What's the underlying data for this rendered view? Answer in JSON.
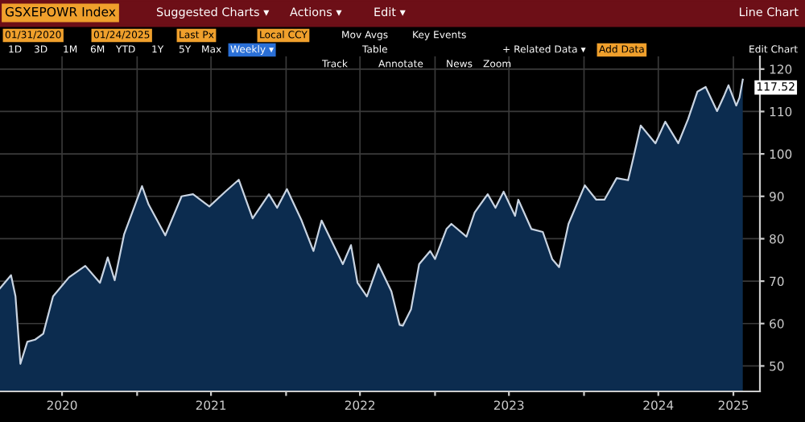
{
  "chart_data": {
    "type": "area",
    "title": "GSXEPOWR Index",
    "annotations": [
      "Suggested Charts ▾",
      "Actions ▾",
      "Edit ▾",
      "Line Chart",
      "01/31/2020",
      "01/24/2025",
      "Last Px",
      "Local CCY",
      "Mov Avgs",
      "Key Events",
      "1D",
      "3D",
      "1M",
      "6M",
      "YTD",
      "1Y",
      "5Y",
      "Max",
      "Weekly ▾",
      "Table",
      "+ Related Data ▾",
      "Add Data",
      "Edit Chart",
      "Track",
      "Annotate",
      "News",
      "Zoom",
      {
        "text": "117.52",
        "x": "2025-01-24",
        "y": 117.52
      }
    ],
    "x": [
      "2020-01-31",
      "2020-02-27",
      "2020-03-09",
      "2020-03-21",
      "2020-04-07",
      "2020-04-26",
      "2020-05-16",
      "2020-06-09",
      "2020-07-18",
      "2020-08-27",
      "2020-10-02",
      "2020-10-21",
      "2020-11-07",
      "2020-11-30",
      "2021-01-13",
      "2021-01-29",
      "2021-03-11",
      "2021-04-20",
      "2021-05-18",
      "2021-06-27",
      "2021-08-05",
      "2021-09-07",
      "2021-10-11",
      "2021-11-20",
      "2021-12-10",
      "2022-01-03",
      "2022-02-08",
      "2022-03-09",
      "2022-03-29",
      "2022-05-20",
      "2022-06-09",
      "2022-06-25",
      "2022-07-18",
      "2022-08-15",
      "2022-09-16",
      "2022-10-06",
      "2022-10-14",
      "2022-11-03",
      "2022-11-23",
      "2022-12-20",
      "2023-01-01",
      "2023-01-29",
      "2023-02-10",
      "2023-03-19",
      "2023-04-08",
      "2023-05-10",
      "2023-05-29",
      "2023-06-18",
      "2023-07-16",
      "2023-07-24",
      "2023-08-25",
      "2023-09-22",
      "2023-10-15",
      "2023-11-01",
      "2023-11-24",
      "2024-01-03",
      "2024-01-31",
      "2024-02-20",
      "2024-03-21",
      "2024-04-18",
      "2024-04-30",
      "2024-05-19",
      "2024-06-24",
      "2024-07-18",
      "2024-08-19",
      "2024-09-12",
      "2024-10-05",
      "2024-10-25",
      "2024-11-22",
      "2024-12-10",
      "2024-12-20",
      "2025-01-08",
      "2025-01-16",
      "2025-01-24"
    ],
    "series": [
      {
        "color": "#0c2c4f",
        "values": [
          68.3,
          71.4,
          66.4,
          50.5,
          55.7,
          56.2,
          57.6,
          66.4,
          70.9,
          73.6,
          69.6,
          75.6,
          70.2,
          81,
          92.4,
          88.1,
          80.8,
          90,
          90.5,
          87.6,
          91.1,
          93.9,
          84.8,
          90.5,
          87.3,
          91.7,
          84.3,
          77.1,
          84.3,
          74,
          78.5,
          69.6,
          66.4,
          74,
          67.6,
          59.7,
          59.5,
          63.3,
          74,
          77.1,
          75.2,
          82.3,
          83.5,
          80.5,
          86.2,
          90.5,
          87.3,
          91.1,
          85.4,
          89.2,
          82.3,
          81.6,
          75.2,
          73.3,
          83.5,
          92.6,
          89.2,
          89.2,
          94.3,
          93.8,
          98.7,
          106.7,
          102.5,
          107.6,
          102.5,
          108.2,
          114.7,
          115.8,
          110.1,
          113.9,
          116.2,
          111.4,
          113.3,
          117.52
        ]
      }
    ],
    "xlim": [
      "2020-01-31",
      "2025-03-07"
    ],
    "xticks": [
      {
        "value": "2020-07-01",
        "label": "2020"
      },
      {
        "value": "2021-01-01",
        "label": null
      },
      {
        "value": "2021-07-01",
        "label": "2021"
      },
      {
        "value": "2022-01-01",
        "label": null
      },
      {
        "value": "2022-07-01",
        "label": "2022"
      },
      {
        "value": "2023-01-01",
        "label": null
      },
      {
        "value": "2023-07-01",
        "label": "2023"
      },
      {
        "value": "2024-01-01",
        "label": null
      },
      {
        "value": "2024-07-01",
        "label": "2024"
      },
      {
        "value": "2025-01-01",
        "label": "2025"
      }
    ],
    "ylim": [
      44,
      123
    ],
    "yticks": [
      50,
      60,
      70,
      80,
      90,
      100,
      110,
      120
    ],
    "grid": true
  }
}
